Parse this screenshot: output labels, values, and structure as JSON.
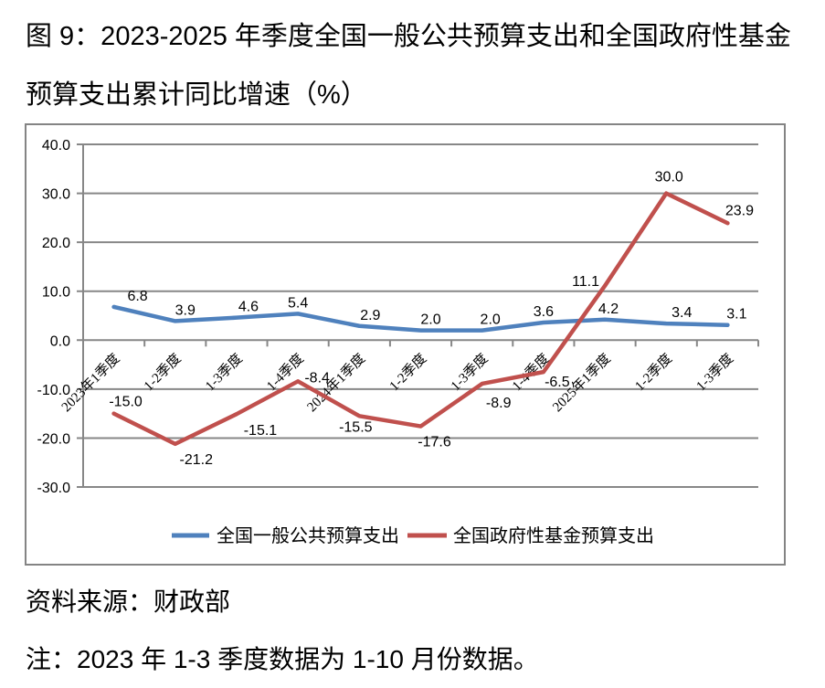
{
  "title": {
    "line1": "图 9：2023-2025 年季度全国一般公共预算支出和全国政府性基金",
    "line2": "预算支出累计同比增速（%）"
  },
  "footer": {
    "source": "资料来源：财政部",
    "note": "注：2023 年 1-3 季度数据为 1-10 月份数据。"
  },
  "chart_data": {
    "type": "line",
    "title": "图 9：2023-2025 年季度全国一般公共预算支出和全国政府性基金预算支出累计同比增速（%）",
    "categories": [
      "2023年1季度",
      "1-2季度",
      "1-3季度",
      "1-4季度",
      "2024年1季度",
      "1-2季度",
      "1-3季度",
      "1-4季度",
      "2025年1季度",
      "1-2季度",
      "1-3季度"
    ],
    "series": [
      {
        "name": "全国一般公共预算支出",
        "color": "#4F81BD",
        "values": [
          6.8,
          3.9,
          4.6,
          5.4,
          2.9,
          2.0,
          2.0,
          3.6,
          4.2,
          3.4,
          3.1
        ]
      },
      {
        "name": "全国政府性基金预算支出",
        "color": "#C0504D",
        "values": [
          -15.0,
          -21.2,
          -15.1,
          -8.4,
          -15.5,
          -17.6,
          -8.9,
          -6.5,
          11.1,
          30.0,
          23.9
        ]
      }
    ],
    "ylim": [
      -30,
      40
    ],
    "ytick_step": 10,
    "ytick_labels": [
      "40.0",
      "30.0",
      "20.0",
      "10.0",
      "0.0",
      "-10.0",
      "-20.0",
      "-30.0"
    ],
    "grid": true,
    "gridline_color": "#878787",
    "data_labels": true,
    "legend_position": "bottom"
  }
}
